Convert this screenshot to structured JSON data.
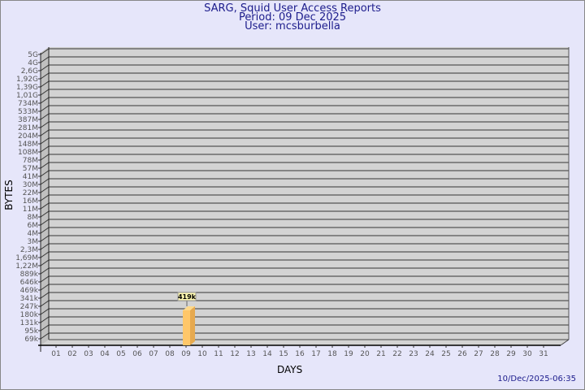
{
  "chart_data": {
    "type": "bar",
    "title": "SARG, Squid User Access Reports",
    "subtitle_period": "Period: 09 Dec 2025",
    "subtitle_user": "User: mcsburbella",
    "xlabel": "DAYS",
    "ylabel": "BYTES",
    "y_ticks": [
      "5G",
      "4G",
      "2,6G",
      "1,92G",
      "1,39G",
      "1,01G",
      "734M",
      "533M",
      "387M",
      "281M",
      "204M",
      "148M",
      "108M",
      "78M",
      "57M",
      "41M",
      "30M",
      "22M",
      "16M",
      "11M",
      "8M",
      "6M",
      "4M",
      "3M",
      "2,3M",
      "1,69M",
      "1,22M",
      "889k",
      "646k",
      "469k",
      "341k",
      "247k",
      "180k",
      "131k",
      "95k",
      "69k"
    ],
    "categories": [
      "01",
      "02",
      "03",
      "04",
      "05",
      "06",
      "07",
      "08",
      "09",
      "10",
      "11",
      "12",
      "13",
      "14",
      "15",
      "16",
      "17",
      "18",
      "19",
      "20",
      "21",
      "22",
      "23",
      "24",
      "25",
      "26",
      "27",
      "28",
      "29",
      "30",
      "31"
    ],
    "bars": [
      {
        "day": "09",
        "value_label": "419k",
        "tick_index": 31.5
      }
    ],
    "grid": true,
    "scale": "log",
    "colors": {
      "bar": "#ffc76a",
      "bar_side": "#e6a94f",
      "wall": "#d3d3d3",
      "side_wall": "#c0c0c0",
      "text": "#1c1c8c"
    }
  },
  "footer": {
    "timestamp": "10/Dec/2025-06:35"
  }
}
